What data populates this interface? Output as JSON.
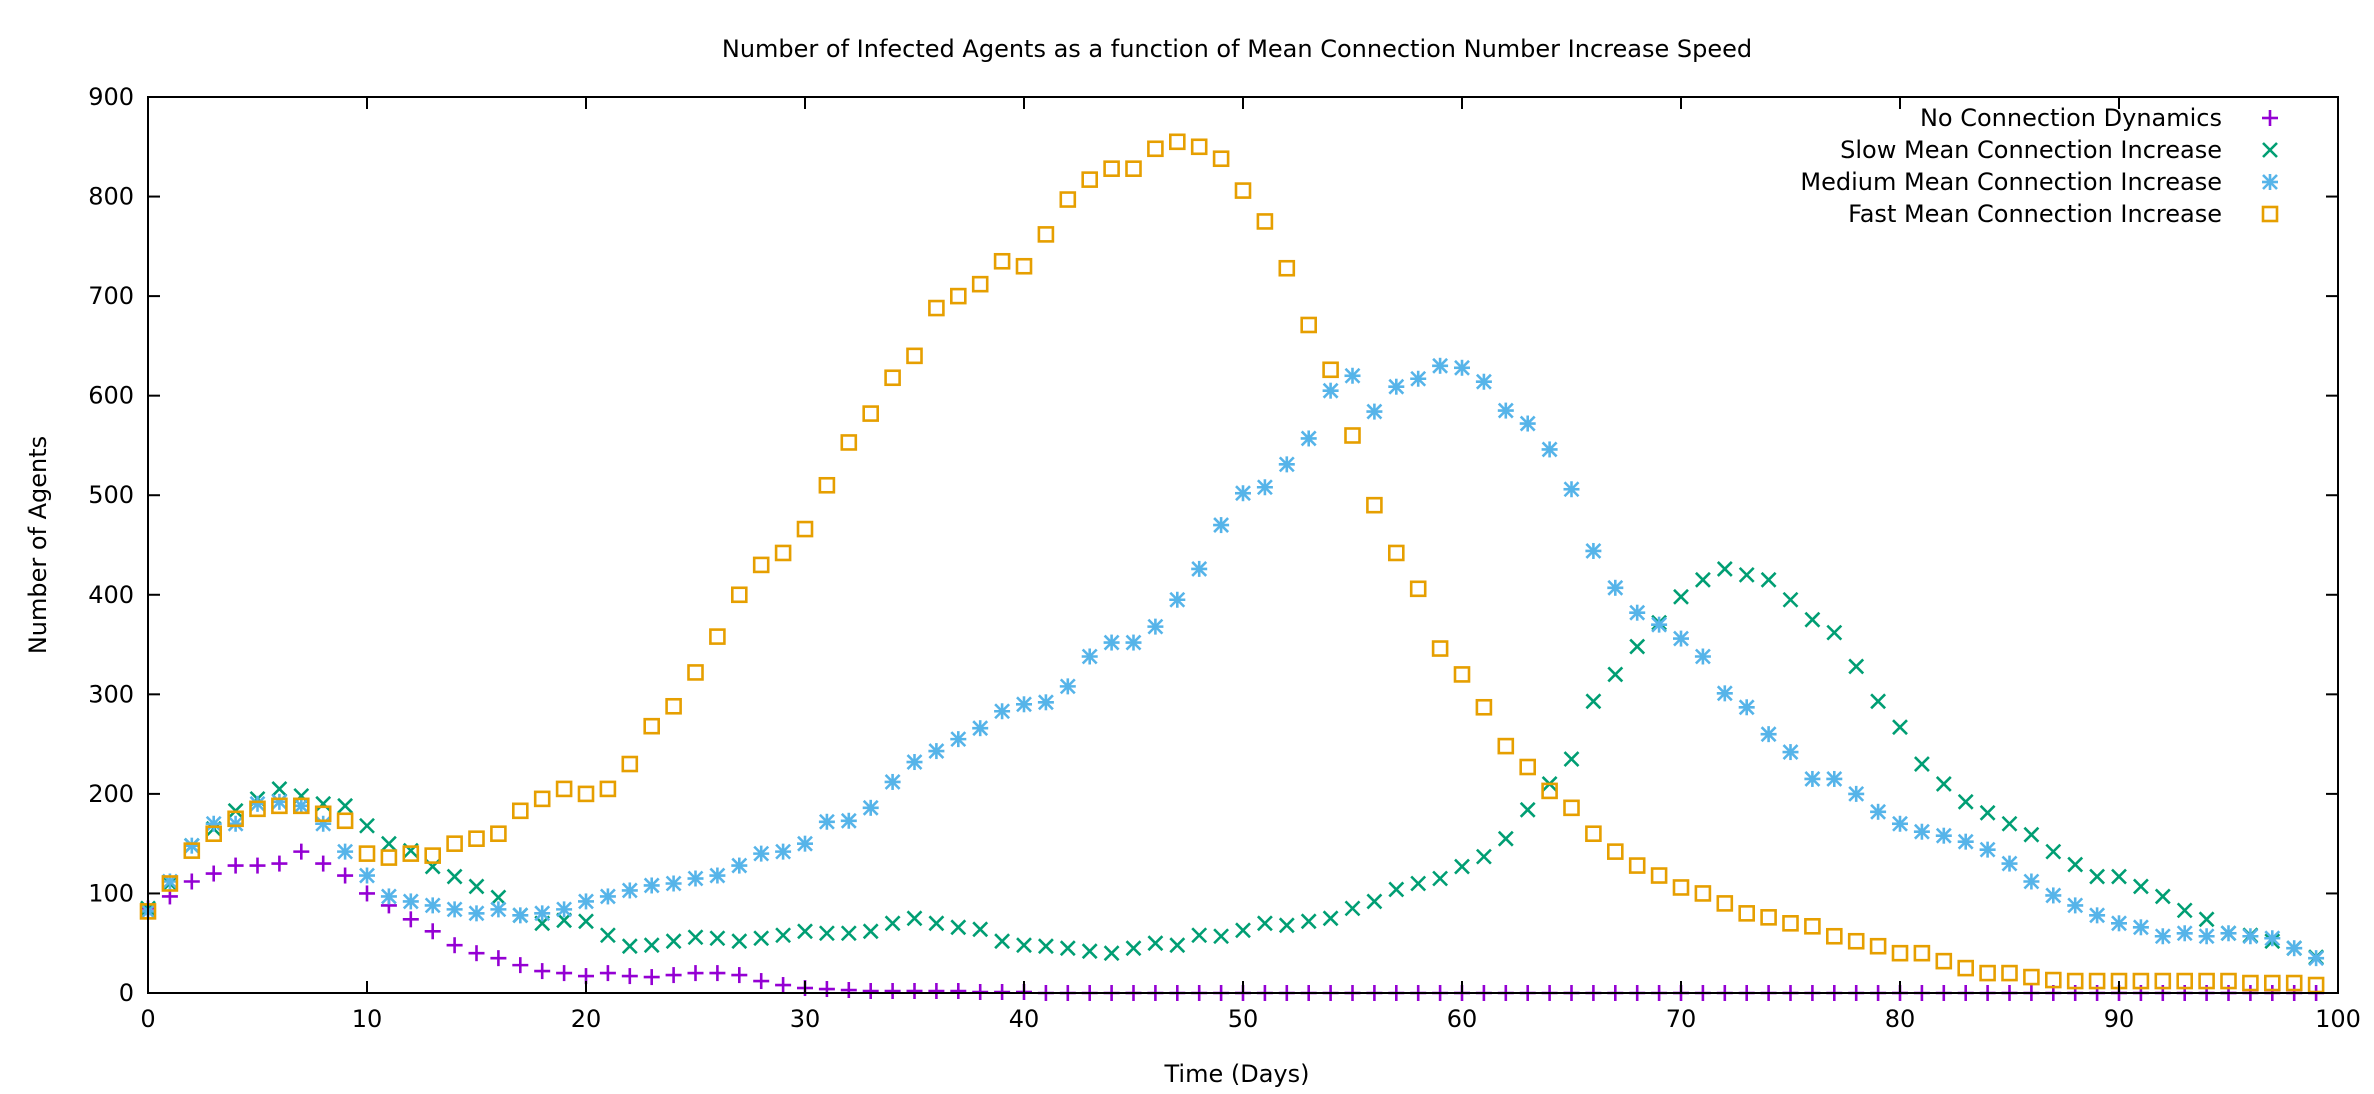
{
  "chart_data": {
    "type": "scatter",
    "title": "Number of Infected Agents as a function of Mean Connection Number Increase Speed",
    "xlabel": "Time (Days)",
    "ylabel": "Number of Agents",
    "xlim": [
      0,
      100
    ],
    "ylim": [
      0,
      900
    ],
    "xticks": [
      0,
      10,
      20,
      30,
      40,
      50,
      60,
      70,
      80,
      90,
      100
    ],
    "yticks": [
      0,
      100,
      200,
      300,
      400,
      500,
      600,
      700,
      800,
      900
    ],
    "grid": false,
    "legend": "top-right",
    "x": [
      0,
      1,
      2,
      3,
      4,
      5,
      6,
      7,
      8,
      9,
      10,
      11,
      12,
      13,
      14,
      15,
      16,
      17,
      18,
      19,
      20,
      21,
      22,
      23,
      24,
      25,
      26,
      27,
      28,
      29,
      30,
      31,
      32,
      33,
      34,
      35,
      36,
      37,
      38,
      39,
      40,
      41,
      42,
      43,
      44,
      45,
      46,
      47,
      48,
      49,
      50,
      51,
      52,
      53,
      54,
      55,
      56,
      57,
      58,
      59,
      60,
      61,
      62,
      63,
      64,
      65,
      66,
      67,
      68,
      69,
      70,
      71,
      72,
      73,
      74,
      75,
      76,
      77,
      78,
      79,
      80,
      81,
      82,
      83,
      84,
      85,
      86,
      87,
      88,
      89,
      90,
      91,
      92,
      93,
      94,
      95,
      96,
      97,
      98,
      99
    ],
    "series": [
      {
        "name": "No Connection Dynamics",
        "marker": "plus",
        "color": "#9400d3",
        "values": [
          85,
          97,
          112,
          120,
          128,
          128,
          130,
          142,
          130,
          118,
          100,
          88,
          74,
          62,
          48,
          40,
          35,
          28,
          22,
          20,
          17,
          20,
          17,
          16,
          18,
          20,
          20,
          18,
          12,
          8,
          5,
          4,
          3,
          2,
          2,
          2,
          2,
          2,
          1,
          1,
          1,
          0,
          0,
          0,
          0,
          0,
          0,
          0,
          0,
          0,
          0,
          0,
          0,
          0,
          0,
          0,
          0,
          0,
          0,
          0,
          0,
          0,
          0,
          0,
          0,
          0,
          0,
          0,
          0,
          0,
          0,
          0,
          0,
          0,
          0,
          0,
          0,
          0,
          0,
          0,
          0,
          0,
          0,
          0,
          0,
          0,
          0,
          0,
          0,
          0,
          0,
          0,
          0,
          0,
          0,
          0,
          0,
          0,
          0,
          0
        ]
      },
      {
        "name": "Slow Mean Connection Increase",
        "marker": "cross",
        "color": "#009e73",
        "values": [
          85,
          110,
          148,
          165,
          183,
          195,
          205,
          198,
          190,
          188,
          168,
          150,
          143,
          127,
          117,
          107,
          96,
          78,
          70,
          73,
          72,
          58,
          47,
          48,
          52,
          56,
          55,
          52,
          55,
          58,
          62,
          60,
          60,
          62,
          70,
          75,
          70,
          66,
          64,
          52,
          48,
          47,
          45,
          42,
          40,
          45,
          50,
          48,
          58,
          57,
          63,
          70,
          68,
          72,
          75,
          85,
          92,
          104,
          110,
          115,
          127,
          137,
          155,
          184,
          210,
          235,
          293,
          320,
          348,
          372,
          398,
          415,
          426,
          420,
          415,
          395,
          375,
          362,
          328,
          293,
          267,
          230,
          210,
          192,
          181,
          170,
          159,
          142,
          129,
          117,
          117,
          107,
          97,
          83,
          74,
          60,
          58,
          52,
          45,
          36
        ]
      },
      {
        "name": "Medium Mean Connection Increase",
        "marker": "star",
        "color": "#56b4e9",
        "values": [
          82,
          112,
          148,
          170,
          170,
          190,
          192,
          188,
          170,
          142,
          118,
          97,
          92,
          88,
          84,
          80,
          84,
          78,
          80,
          84,
          92,
          97,
          103,
          108,
          110,
          115,
          118,
          128,
          140,
          142,
          150,
          172,
          173,
          186,
          212,
          232,
          243,
          255,
          266,
          283,
          290,
          292,
          308,
          338,
          352,
          352,
          368,
          395,
          426,
          470,
          502,
          508,
          531,
          557,
          605,
          620,
          584,
          609,
          617,
          630,
          628,
          614,
          585,
          572,
          546,
          506,
          444,
          407,
          382,
          370,
          356,
          338,
          301,
          287,
          260,
          242,
          215,
          215,
          200,
          182,
          170,
          162,
          158,
          152,
          144,
          130,
          112,
          98,
          88,
          78,
          70,
          66,
          57,
          60,
          57,
          60,
          57,
          55,
          45,
          35
        ]
      },
      {
        "name": "Fast Mean Connection Increase",
        "marker": "square",
        "color": "#e69f00",
        "values": [
          82,
          110,
          143,
          160,
          175,
          185,
          188,
          188,
          180,
          173,
          140,
          136,
          140,
          138,
          150,
          155,
          160,
          183,
          195,
          205,
          200,
          205,
          230,
          268,
          288,
          322,
          358,
          400,
          430,
          442,
          466,
          510,
          553,
          582,
          618,
          640,
          688,
          700,
          712,
          735,
          730,
          762,
          797,
          817,
          828,
          828,
          848,
          855,
          850,
          838,
          806,
          775,
          728,
          671,
          626,
          560,
          490,
          442,
          406,
          346,
          320,
          287,
          248,
          227,
          203,
          186,
          160,
          142,
          128,
          118,
          106,
          100,
          90,
          80,
          76,
          70,
          67,
          57,
          52,
          47,
          40,
          40,
          32,
          25,
          20,
          20,
          16,
          13,
          12,
          12,
          12,
          12,
          12,
          12,
          12,
          12,
          10,
          10,
          10,
          8
        ]
      }
    ]
  }
}
